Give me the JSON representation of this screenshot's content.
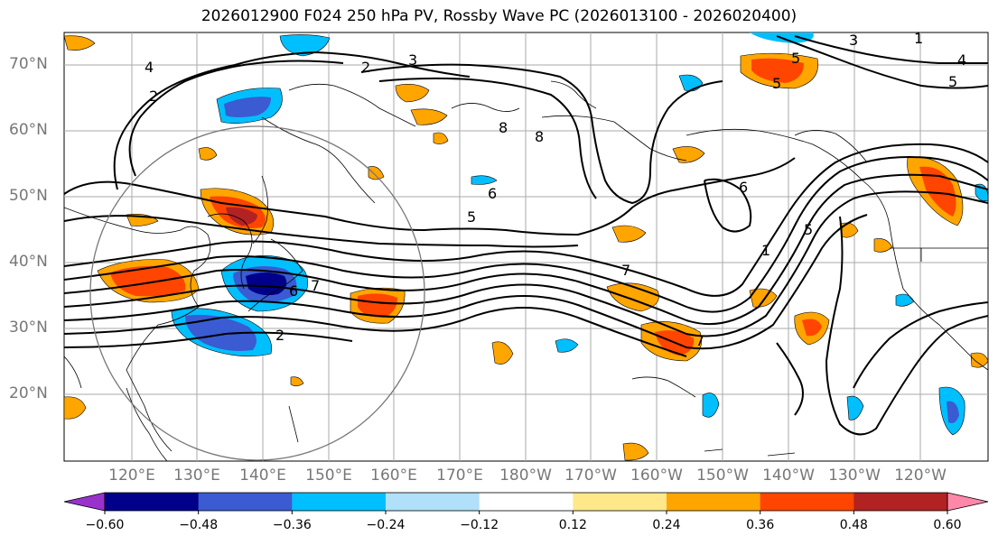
{
  "title": "2026012900 F024 250 hPa PV, Rossby Wave PC (2026013100 - 2026020400)",
  "lat_labels": [
    "70°N",
    "60°N",
    "50°N",
    "40°N",
    "30°N",
    "20°N"
  ],
  "lon_labels": [
    "120°E",
    "130°E",
    "140°E",
    "150°E",
    "160°E",
    "170°E",
    "180°W",
    "170°W",
    "160°W",
    "150°W",
    "140°W",
    "130°W",
    "120°W"
  ],
  "colorbar": {
    "ticks": [
      "−0.60",
      "−0.48",
      "−0.36",
      "−0.24",
      "−0.12",
      "0.12",
      "0.24",
      "0.36",
      "0.48",
      "0.60"
    ],
    "colors": [
      "#9932cc",
      "#00008b",
      "#3a5bd2",
      "#00bfff",
      "#b0e0fa",
      "#ffffff",
      "#ffe88a",
      "#ffa500",
      "#ff4500",
      "#b22222",
      "#ff88aa"
    ]
  },
  "contour_labels": [
    "2",
    "3",
    "4",
    "5",
    "6",
    "7",
    "8",
    "1"
  ],
  "colors": {
    "contour": "#000000",
    "grid": "#aaaaaa",
    "axis_label": "#777777",
    "circle": "#777777"
  }
}
